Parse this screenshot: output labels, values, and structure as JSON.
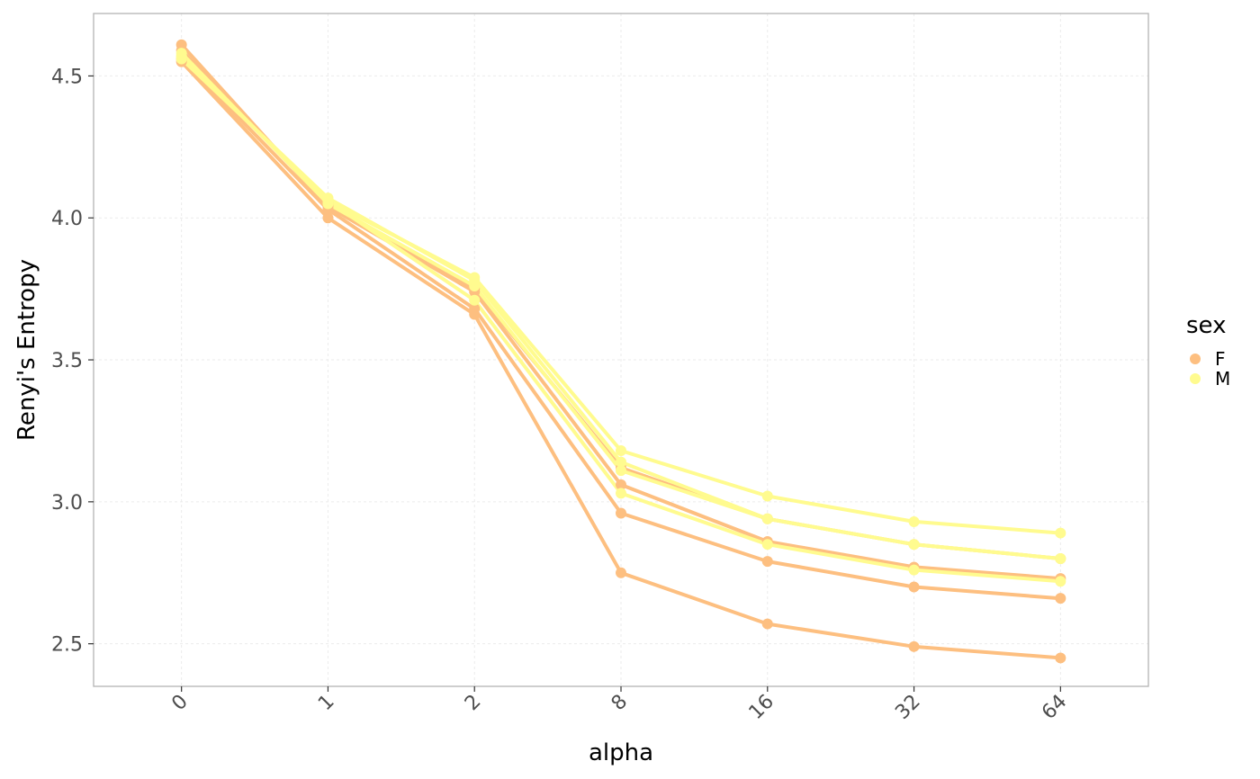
{
  "chart_data": {
    "type": "line",
    "xlabel": "alpha",
    "ylabel": "Renyi's Entropy",
    "categories": [
      "0",
      "1",
      "2",
      "8",
      "16",
      "32",
      "64"
    ],
    "ylim": [
      2.35,
      4.72
    ],
    "yticks": [
      2.5,
      3.0,
      3.5,
      4.0,
      4.5
    ],
    "ytick_labels": [
      "2.5",
      "3.0",
      "3.5",
      "4.0",
      "4.5"
    ],
    "grid": true,
    "legend": {
      "title": "sex",
      "position": "right",
      "entries": [
        {
          "label": "F",
          "color": "#FDBF80"
        },
        {
          "label": "M",
          "color": "#FFFB8F"
        }
      ]
    },
    "series": [
      {
        "group": "F",
        "values": [
          4.55,
          4.0,
          3.66,
          2.75,
          2.57,
          2.49,
          2.45
        ]
      },
      {
        "group": "F",
        "values": [
          4.56,
          4.03,
          3.68,
          2.96,
          2.79,
          2.7,
          2.66
        ]
      },
      {
        "group": "F",
        "values": [
          4.61,
          4.04,
          3.74,
          3.06,
          2.86,
          2.77,
          2.73
        ]
      },
      {
        "group": "F",
        "values": [
          4.59,
          4.05,
          3.75,
          3.12,
          2.94,
          2.85,
          2.8
        ]
      },
      {
        "group": "M",
        "values": [
          4.57,
          4.06,
          3.71,
          3.03,
          2.85,
          2.76,
          2.72
        ]
      },
      {
        "group": "M",
        "values": [
          4.58,
          4.05,
          3.76,
          3.11,
          2.94,
          2.85,
          2.8
        ]
      },
      {
        "group": "M",
        "values": [
          4.56,
          4.07,
          3.78,
          3.14,
          2.94,
          2.85,
          2.8
        ]
      },
      {
        "group": "M",
        "values": [
          4.57,
          4.06,
          3.79,
          3.18,
          3.02,
          2.93,
          2.89
        ]
      }
    ]
  }
}
